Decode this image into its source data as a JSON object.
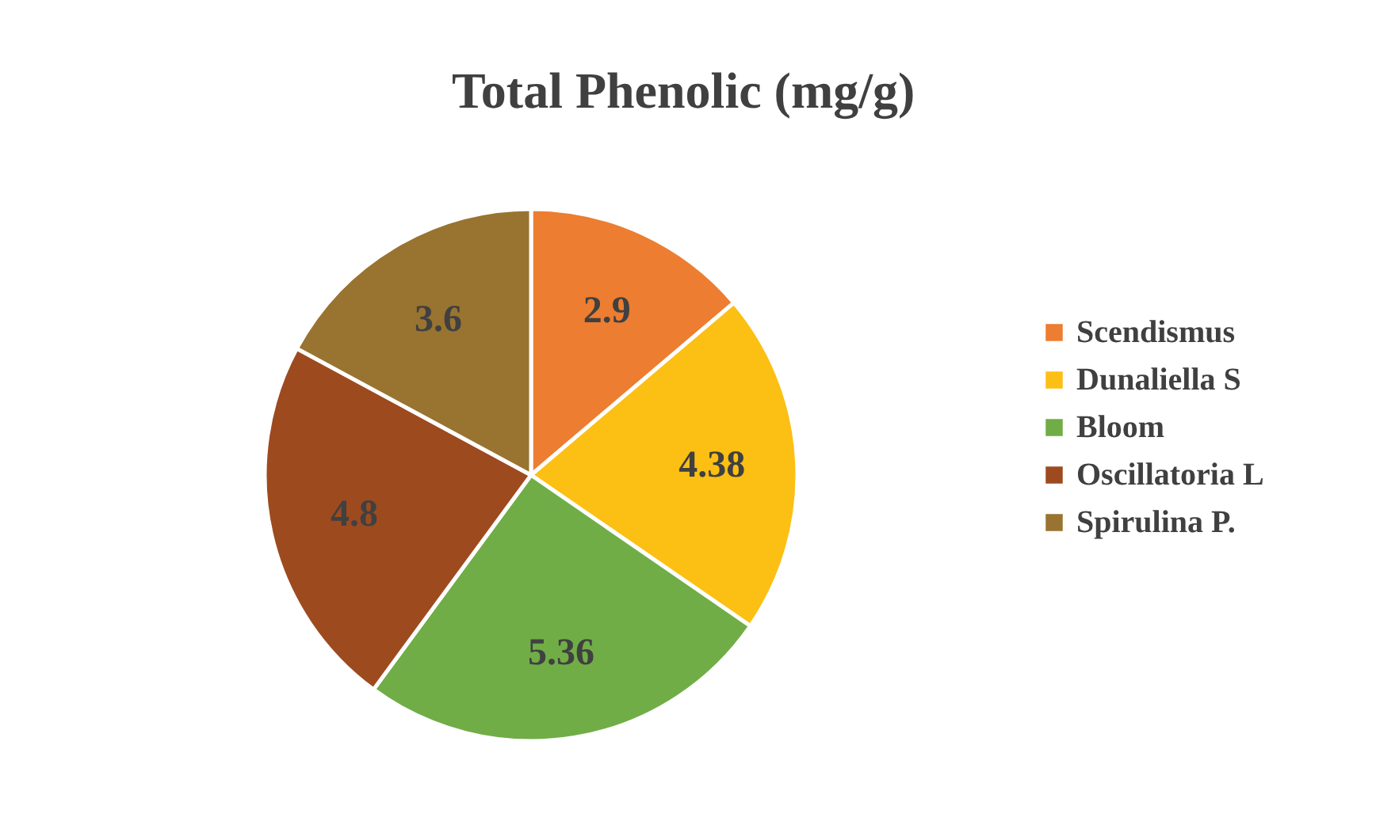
{
  "chart_data": {
    "type": "pie",
    "title": "Total Phenolic (mg/g)",
    "categories": [
      "Scendismus",
      "Dunaliella S",
      "Bloom",
      "Oscillatoria L",
      "Spirulina P."
    ],
    "values": [
      2.9,
      4.38,
      5.36,
      4.8,
      3.6
    ],
    "colors": [
      "#ed7d31",
      "#fcbf13",
      "#70ad47",
      "#9e4a1f",
      "#997330"
    ],
    "data_labels": true,
    "legend": "right"
  }
}
